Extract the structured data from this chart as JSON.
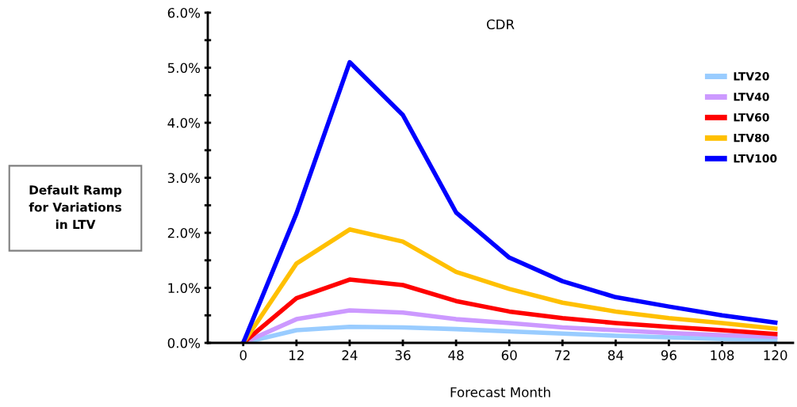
{
  "chart_data": {
    "type": "line",
    "title": "CDR",
    "xlabel": "Forecast Month",
    "annotations": [
      "Default Ramp\nfor Variations\nin LTV"
    ],
    "x": [
      0,
      12,
      24,
      36,
      48,
      60,
      72,
      84,
      96,
      108,
      120
    ],
    "series": [
      {
        "name": "LTV20",
        "color": "#99ccff",
        "values": [
          0,
          0.23,
          0.29,
          0.28,
          0.25,
          0.21,
          0.17,
          0.13,
          0.1,
          0.07,
          0.05
        ]
      },
      {
        "name": "LTV40",
        "color": "#cc99ff",
        "values": [
          0,
          0.43,
          0.59,
          0.55,
          0.43,
          0.36,
          0.28,
          0.23,
          0.18,
          0.14,
          0.11
        ]
      },
      {
        "name": "LTV60",
        "color": "#ff0000",
        "values": [
          0,
          0.81,
          1.15,
          1.05,
          0.76,
          0.57,
          0.45,
          0.36,
          0.29,
          0.23,
          0.16
        ]
      },
      {
        "name": "LTV80",
        "color": "#ffc000",
        "values": [
          0,
          1.44,
          2.06,
          1.84,
          1.29,
          0.98,
          0.73,
          0.57,
          0.45,
          0.36,
          0.26
        ]
      },
      {
        "name": "LTV100",
        "color": "#0000ff",
        "values": [
          0,
          2.35,
          5.1,
          4.14,
          2.37,
          1.55,
          1.12,
          0.83,
          0.66,
          0.5,
          0.37
        ]
      }
    ],
    "xlim": [
      -8,
      124
    ],
    "xticks": [
      0,
      12,
      24,
      36,
      48,
      60,
      72,
      84,
      96,
      108,
      120
    ],
    "ylim": [
      0,
      6
    ],
    "yticks": [
      {
        "value": 0,
        "label": "0.0%"
      },
      {
        "value": 0.5,
        "label": null
      },
      {
        "value": 1,
        "label": "1.0%"
      },
      {
        "value": 1.5,
        "label": null
      },
      {
        "value": 2,
        "label": "2.0%"
      },
      {
        "value": 2.5,
        "label": null
      },
      {
        "value": 3,
        "label": "3.0%"
      },
      {
        "value": 3.5,
        "label": null
      },
      {
        "value": 4,
        "label": "4.0%"
      },
      {
        "value": 4.5,
        "label": null
      },
      {
        "value": 5,
        "label": "5.0%"
      },
      {
        "value": 5.5,
        "label": null
      },
      {
        "value": 6,
        "label": "6.0%"
      }
    ],
    "grid": false,
    "legend": "right",
    "marker": "none",
    "line_style": "solid"
  }
}
